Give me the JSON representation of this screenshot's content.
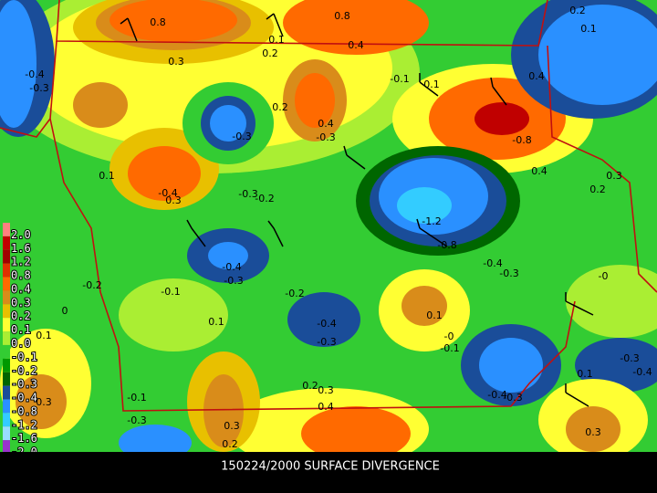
{
  "title": "150224/2000 SURFACE DIVERGENCE",
  "legend": [
    {
      "label": "2.0",
      "color": "#ff8080"
    },
    {
      "label": "1.6",
      "color": "#c00000"
    },
    {
      "label": "1.2",
      "color": "#a00000"
    },
    {
      "label": "0.8",
      "color": "#e03000"
    },
    {
      "label": "0.4",
      "color": "#ff6a00"
    },
    {
      "label": "0.3",
      "color": "#d98c1a"
    },
    {
      "label": "0.2",
      "color": "#e8c000"
    },
    {
      "label": "0.1",
      "color": "#ffff33"
    },
    {
      "label": "0.0",
      "color": "#aaee33"
    },
    {
      "label": "-0.1",
      "color": "#33cc33"
    },
    {
      "label": "-0.2",
      "color": "#009900"
    },
    {
      "label": "-0.3",
      "color": "#006600"
    },
    {
      "label": "-0.4",
      "color": "#1a4d99"
    },
    {
      "label": "-0.8",
      "color": "#2a90ff"
    },
    {
      "label": "-1.2",
      "color": "#33ccff"
    },
    {
      "label": "-1.6",
      "color": "#99ddff"
    },
    {
      "label": "-2.0",
      "color": "#9933cc"
    }
  ],
  "contour_labels": [
    "0.8",
    "0.8",
    "0.4",
    "0.1",
    "0.2",
    "0.3",
    "-0.4",
    "-0.3",
    "0.1",
    "-0.4",
    "0.3",
    "-0.3",
    "-0.2",
    "-0.3",
    "-0.1",
    "0.1",
    "0.2",
    "0.4",
    "-0.3",
    "-0.8",
    "0.4",
    "0.3",
    "0.2",
    "-1.2",
    "-0.8",
    "-0.4",
    "-0.3",
    "-0.2",
    "0",
    "-0.1",
    "-0.4",
    "-0.3",
    "-0.2",
    "0.1",
    "-0.4",
    "-0.3",
    "0.1",
    "0.1",
    "-0",
    "-0.1",
    "-0",
    "-0.3",
    "-0.4",
    "0.1",
    "-0.1",
    "-0.3",
    "0.3",
    "0.2",
    "0.3",
    "0.4",
    "-0.4",
    "-0.3",
    "0.3",
    "0.2",
    "0.3",
    "0.2",
    "0.4",
    "0.1"
  ]
}
